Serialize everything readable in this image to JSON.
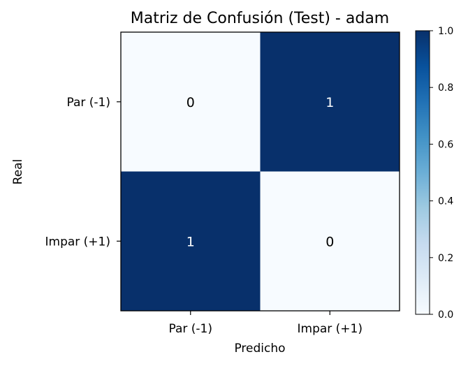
{
  "chart_data": {
    "type": "heatmap",
    "title": "Matriz de Confusión (Test) - adam",
    "xlabel": "Predicho",
    "ylabel": "Real",
    "x_categories": [
      "Par (-1)",
      "Impar (+1)"
    ],
    "y_categories": [
      "Par (-1)",
      "Impar (+1)"
    ],
    "values": [
      [
        0,
        1
      ],
      [
        1,
        0
      ]
    ],
    "cell_labels": [
      [
        "0",
        "1"
      ],
      [
        "1",
        "0"
      ]
    ],
    "colormap": "Blues",
    "colors": {
      "low": "#f7fbff",
      "high": "#08306b",
      "text_on_low": "#000000",
      "text_on_high": "#ffffff"
    },
    "colorbar": {
      "range": [
        0.0,
        1.0
      ],
      "ticks": [
        0.0,
        0.2,
        0.4,
        0.6,
        0.8,
        1.0
      ],
      "tick_labels": [
        "0.0",
        "0.2",
        "0.4",
        "0.6",
        "0.8",
        "1.0"
      ]
    }
  }
}
